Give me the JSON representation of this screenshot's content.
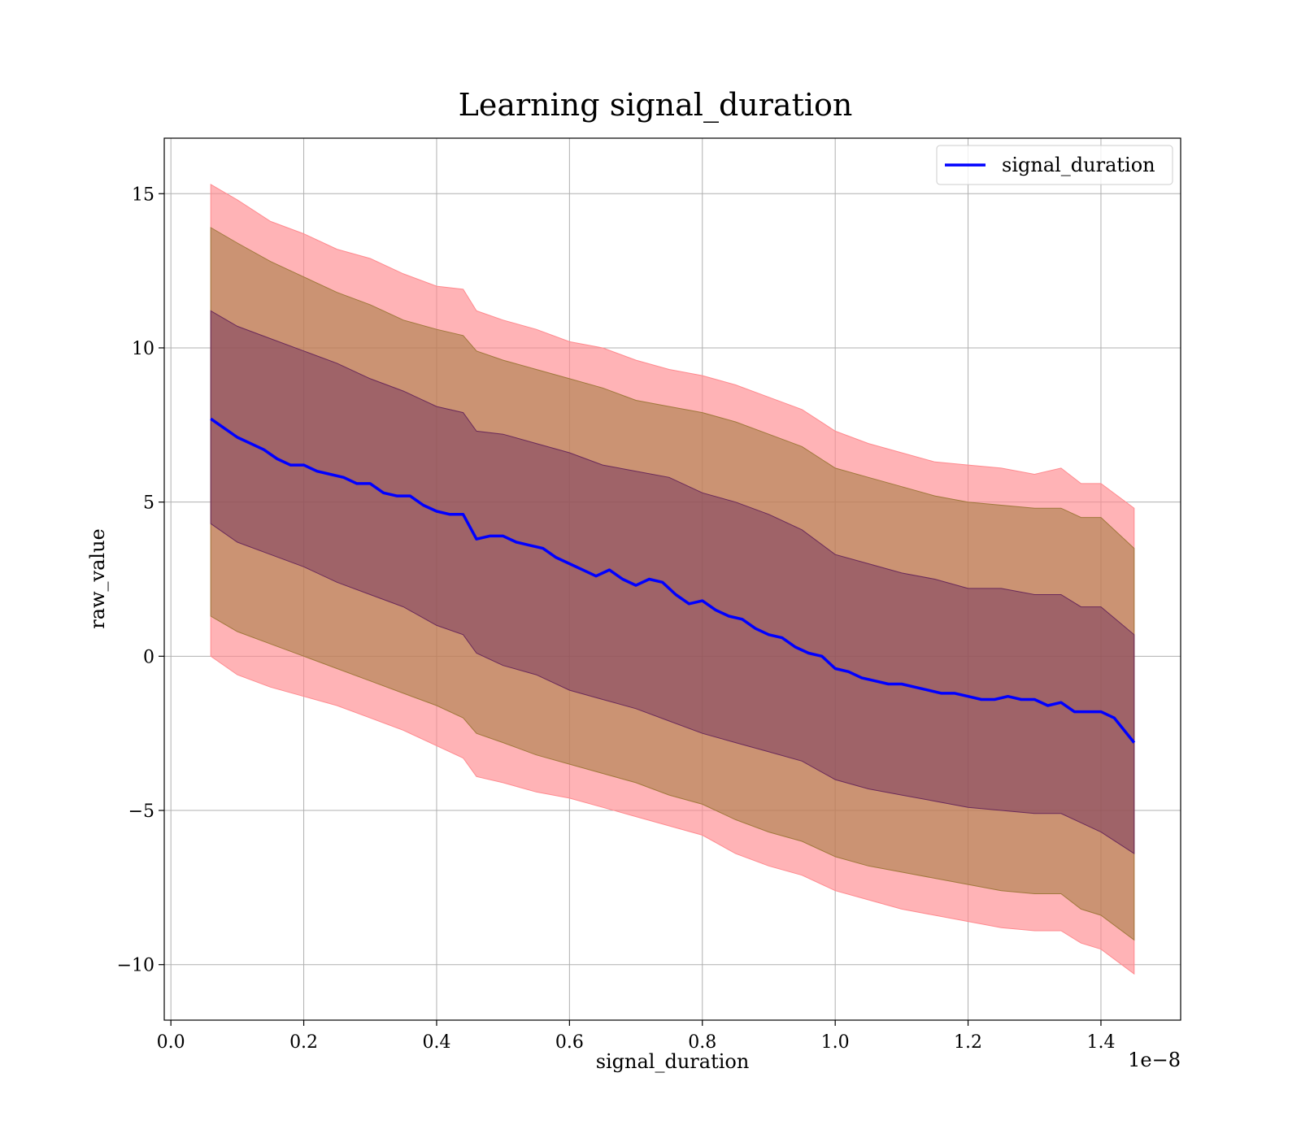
{
  "chart_data": {
    "type": "line",
    "title": "Learning signal_duration",
    "xlabel": "signal_duration",
    "ylabel": "raw_value",
    "x_offset_text": "1e−8",
    "xlim": [
      -0.01,
      1.52
    ],
    "ylim": [
      -11.8,
      16.8
    ],
    "x_ticks": [
      0.0,
      0.2,
      0.4,
      0.6,
      0.8,
      1.0,
      1.2,
      1.4
    ],
    "x_tick_labels": [
      "0.0",
      "0.2",
      "0.4",
      "0.6",
      "0.8",
      "1.0",
      "1.2",
      "1.4"
    ],
    "y_ticks": [
      -10,
      -5,
      0,
      5,
      10,
      15
    ],
    "y_tick_labels": [
      "−10",
      "−5",
      "0",
      "5",
      "10",
      "15"
    ],
    "grid": true,
    "legend": {
      "position": "upper-right",
      "entries": [
        "signal_duration"
      ]
    },
    "colors": {
      "line": "#0000ff",
      "band_outer": "#ff8a8f",
      "band_middle": "#a0783c",
      "band_inner": "#6a2a5a"
    },
    "series": [
      {
        "name": "signal_duration",
        "x": [
          0.06,
          0.08,
          0.1,
          0.12,
          0.14,
          0.16,
          0.18,
          0.2,
          0.22,
          0.24,
          0.26,
          0.28,
          0.3,
          0.32,
          0.34,
          0.36,
          0.38,
          0.4,
          0.42,
          0.44,
          0.46,
          0.48,
          0.5,
          0.52,
          0.54,
          0.56,
          0.58,
          0.6,
          0.62,
          0.64,
          0.66,
          0.68,
          0.7,
          0.72,
          0.74,
          0.76,
          0.78,
          0.8,
          0.82,
          0.84,
          0.86,
          0.88,
          0.9,
          0.92,
          0.94,
          0.96,
          0.98,
          1.0,
          1.02,
          1.04,
          1.06,
          1.08,
          1.1,
          1.12,
          1.14,
          1.16,
          1.18,
          1.2,
          1.22,
          1.24,
          1.26,
          1.28,
          1.3,
          1.32,
          1.34,
          1.36,
          1.38,
          1.4,
          1.42,
          1.45
        ],
        "y": [
          7.7,
          7.4,
          7.1,
          6.9,
          6.7,
          6.4,
          6.2,
          6.2,
          6.0,
          5.9,
          5.8,
          5.6,
          5.6,
          5.3,
          5.2,
          5.2,
          4.9,
          4.7,
          4.6,
          4.6,
          3.8,
          3.9,
          3.9,
          3.7,
          3.6,
          3.5,
          3.2,
          3.0,
          2.8,
          2.6,
          2.8,
          2.5,
          2.3,
          2.5,
          2.4,
          2.0,
          1.7,
          1.8,
          1.5,
          1.3,
          1.2,
          0.9,
          0.7,
          0.6,
          0.3,
          0.1,
          0.0,
          -0.4,
          -0.5,
          -0.7,
          -0.8,
          -0.9,
          -0.9,
          -1.0,
          -1.1,
          -1.2,
          -1.2,
          -1.3,
          -1.4,
          -1.4,
          -1.3,
          -1.4,
          -1.4,
          -1.6,
          -1.5,
          -1.8,
          -1.8,
          -1.8,
          -2.0,
          -2.8
        ]
      }
    ],
    "bands": [
      {
        "name": "outer",
        "x": [
          0.06,
          0.1,
          0.15,
          0.2,
          0.25,
          0.3,
          0.35,
          0.4,
          0.44,
          0.46,
          0.5,
          0.55,
          0.6,
          0.65,
          0.7,
          0.75,
          0.8,
          0.85,
          0.9,
          0.95,
          1.0,
          1.05,
          1.1,
          1.15,
          1.2,
          1.25,
          1.3,
          1.34,
          1.37,
          1.4,
          1.45
        ],
        "upper": [
          15.3,
          14.8,
          14.1,
          13.7,
          13.2,
          12.9,
          12.4,
          12.0,
          11.9,
          11.2,
          10.9,
          10.6,
          10.2,
          10.0,
          9.6,
          9.3,
          9.1,
          8.8,
          8.4,
          8.0,
          7.3,
          6.9,
          6.6,
          6.3,
          6.2,
          6.1,
          5.9,
          6.1,
          5.6,
          5.6,
          4.8
        ],
        "lower": [
          0.0,
          -0.6,
          -1.0,
          -1.3,
          -1.6,
          -2.0,
          -2.4,
          -2.9,
          -3.3,
          -3.9,
          -4.1,
          -4.4,
          -4.6,
          -4.9,
          -5.2,
          -5.5,
          -5.8,
          -6.4,
          -6.8,
          -7.1,
          -7.6,
          -7.9,
          -8.2,
          -8.4,
          -8.6,
          -8.8,
          -8.9,
          -8.9,
          -9.3,
          -9.5,
          -10.3
        ]
      },
      {
        "name": "middle",
        "x": [
          0.06,
          0.1,
          0.15,
          0.2,
          0.25,
          0.3,
          0.35,
          0.4,
          0.44,
          0.46,
          0.5,
          0.55,
          0.6,
          0.65,
          0.7,
          0.75,
          0.8,
          0.85,
          0.9,
          0.95,
          1.0,
          1.05,
          1.1,
          1.15,
          1.2,
          1.25,
          1.3,
          1.34,
          1.37,
          1.4,
          1.45
        ],
        "upper": [
          13.9,
          13.4,
          12.8,
          12.3,
          11.8,
          11.4,
          10.9,
          10.6,
          10.4,
          9.9,
          9.6,
          9.3,
          9.0,
          8.7,
          8.3,
          8.1,
          7.9,
          7.6,
          7.2,
          6.8,
          6.1,
          5.8,
          5.5,
          5.2,
          5.0,
          4.9,
          4.8,
          4.8,
          4.5,
          4.5,
          3.5
        ],
        "lower": [
          1.3,
          0.8,
          0.4,
          0.0,
          -0.4,
          -0.8,
          -1.2,
          -1.6,
          -2.0,
          -2.5,
          -2.8,
          -3.2,
          -3.5,
          -3.8,
          -4.1,
          -4.5,
          -4.8,
          -5.3,
          -5.7,
          -6.0,
          -6.5,
          -6.8,
          -7.0,
          -7.2,
          -7.4,
          -7.6,
          -7.7,
          -7.7,
          -8.2,
          -8.4,
          -9.2
        ]
      },
      {
        "name": "inner",
        "x": [
          0.06,
          0.1,
          0.15,
          0.2,
          0.25,
          0.3,
          0.35,
          0.4,
          0.44,
          0.46,
          0.5,
          0.55,
          0.6,
          0.65,
          0.7,
          0.75,
          0.8,
          0.85,
          0.9,
          0.95,
          1.0,
          1.05,
          1.1,
          1.15,
          1.2,
          1.25,
          1.3,
          1.34,
          1.37,
          1.4,
          1.45
        ],
        "upper": [
          11.2,
          10.7,
          10.3,
          9.9,
          9.5,
          9.0,
          8.6,
          8.1,
          7.9,
          7.3,
          7.2,
          6.9,
          6.6,
          6.2,
          6.0,
          5.8,
          5.3,
          5.0,
          4.6,
          4.1,
          3.3,
          3.0,
          2.7,
          2.5,
          2.2,
          2.2,
          2.0,
          2.0,
          1.6,
          1.6,
          0.7
        ],
        "lower": [
          4.3,
          3.7,
          3.3,
          2.9,
          2.4,
          2.0,
          1.6,
          1.0,
          0.7,
          0.1,
          -0.3,
          -0.6,
          -1.1,
          -1.4,
          -1.7,
          -2.1,
          -2.5,
          -2.8,
          -3.1,
          -3.4,
          -4.0,
          -4.3,
          -4.5,
          -4.7,
          -4.9,
          -5.0,
          -5.1,
          -5.1,
          -5.4,
          -5.7,
          -6.4
        ]
      }
    ]
  }
}
